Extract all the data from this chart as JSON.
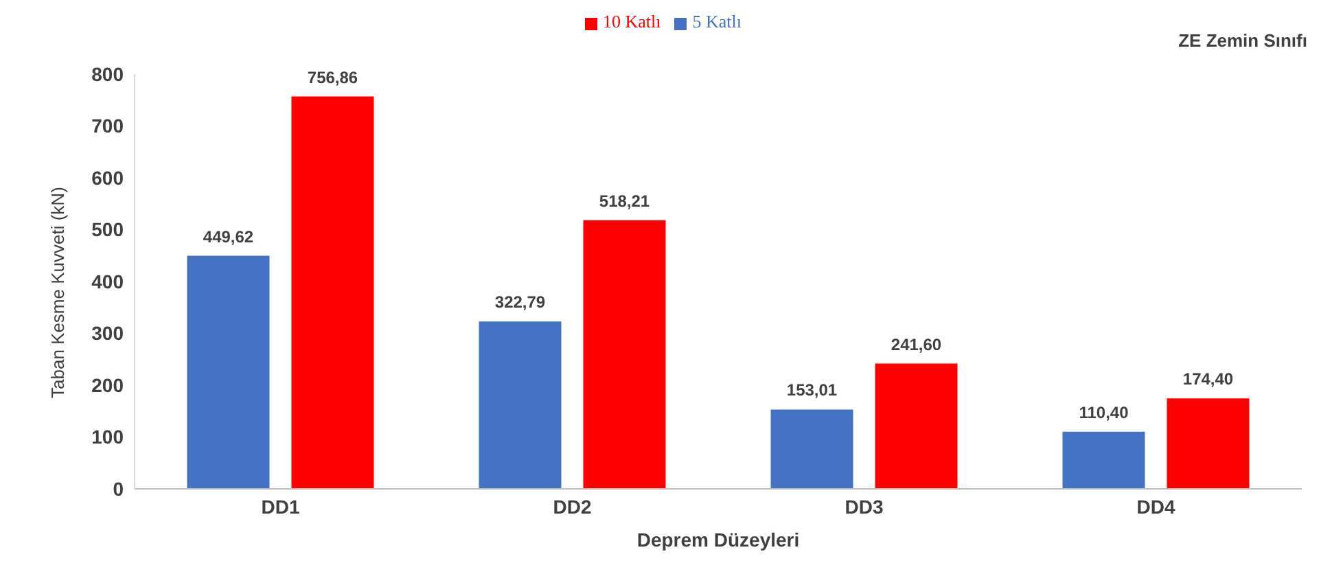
{
  "chart_data": {
    "type": "bar",
    "title": "ZE Zemin Sınıfı",
    "xlabel": "Deprem Düzeyleri",
    "ylabel": "Taban Kesme Kuvveti (kN)",
    "categories": [
      "DD1",
      "DD2",
      "DD3",
      "DD4"
    ],
    "series": [
      {
        "name": "5 Katlı",
        "color": "#4472c4",
        "values": [
          449.62,
          322.79,
          153.01,
          110.4
        ],
        "value_labels": [
          "449,62",
          "322,79",
          "153,01",
          "110,40"
        ]
      },
      {
        "name": "10 Katlı",
        "color": "#ff0000",
        "values": [
          756.86,
          518.21,
          241.6,
          174.4
        ],
        "value_labels": [
          "756,86",
          "518,21",
          "241,60",
          "174,40"
        ]
      }
    ],
    "ylim": [
      0,
      800
    ],
    "yticks": [
      0,
      100,
      200,
      300,
      400,
      500,
      600,
      700,
      800
    ],
    "grid": false,
    "legend": "top"
  }
}
